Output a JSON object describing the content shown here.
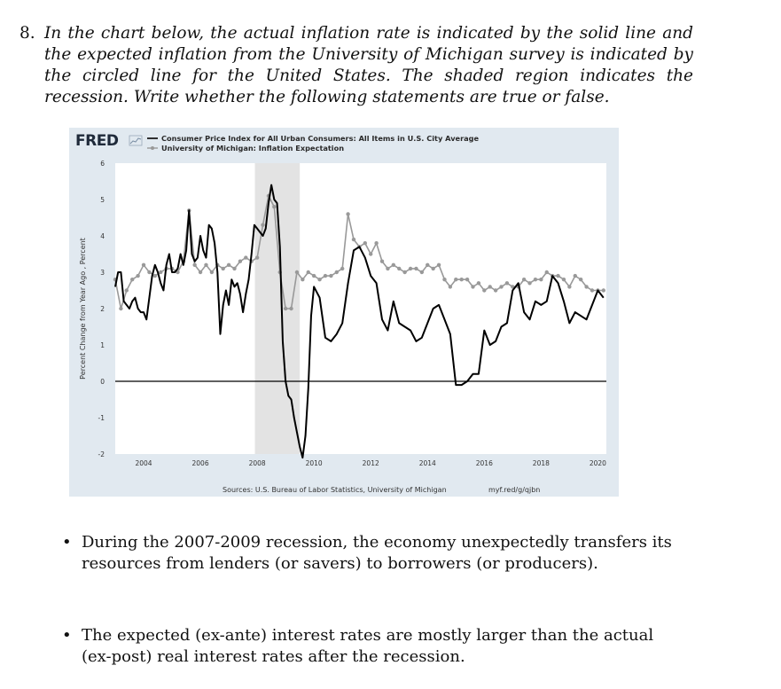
{
  "question": {
    "number": "8.",
    "text": "In the chart below, the actual inflation rate is indicated by the solid line and the expected inflation from the University of Michigan survey is indicated by the circled line for the United States. The shaded region indicates the recession. Write whether the following statements are true or false."
  },
  "chart_data": {
    "type": "line",
    "logo": "FRED",
    "legend": [
      "Consumer Price Index for All Urban Consumers: All Items in U.S. City Average",
      "University of Michigan: Inflation Expectation"
    ],
    "ylabel": "Percent Change from Year Ago , Percent",
    "ylim": [
      -2,
      6
    ],
    "yticks": [
      "6",
      "5",
      "4",
      "3",
      "2",
      "1",
      "0",
      "-1",
      "-2"
    ],
    "xlim": [
      2003.0,
      2020.3
    ],
    "xticks": [
      "2004",
      "2006",
      "2008",
      "2010",
      "2012",
      "2014",
      "2016",
      "2018",
      "2020"
    ],
    "recession": [
      2007.92,
      2009.5
    ],
    "source": "Sources: U.S. Bureau of Labor Statistics, University of Michigan",
    "url": "myf.red/g/qjbn",
    "colors": {
      "actual": "#000000",
      "expected": "#999999",
      "recession": "#e3e3e3"
    },
    "series": [
      {
        "name": "Consumer Price Index for All Urban Consumers: All Items in U.S. City Average",
        "x": [
          2003.0,
          2003.1,
          2003.2,
          2003.3,
          2003.4,
          2003.5,
          2003.6,
          2003.7,
          2003.8,
          2003.9,
          2004.0,
          2004.1,
          2004.2,
          2004.3,
          2004.4,
          2004.5,
          2004.6,
          2004.7,
          2004.8,
          2004.9,
          2005.0,
          2005.1,
          2005.2,
          2005.3,
          2005.4,
          2005.5,
          2005.6,
          2005.7,
          2005.8,
          2005.9,
          2006.0,
          2006.1,
          2006.2,
          2006.3,
          2006.4,
          2006.5,
          2006.6,
          2006.7,
          2006.8,
          2006.9,
          2007.0,
          2007.1,
          2007.2,
          2007.3,
          2007.4,
          2007.5,
          2007.6,
          2007.7,
          2007.8,
          2007.9,
          2008.0,
          2008.1,
          2008.2,
          2008.3,
          2008.4,
          2008.5,
          2008.6,
          2008.7,
          2008.8,
          2008.9,
          2009.0,
          2009.1,
          2009.2,
          2009.3,
          2009.4,
          2009.5,
          2009.6,
          2009.7,
          2009.8,
          2009.9,
          2010.0,
          2010.2,
          2010.4,
          2010.6,
          2010.8,
          2011.0,
          2011.2,
          2011.4,
          2011.6,
          2011.8,
          2012.0,
          2012.2,
          2012.4,
          2012.6,
          2012.8,
          2013.0,
          2013.2,
          2013.4,
          2013.6,
          2013.8,
          2014.0,
          2014.2,
          2014.4,
          2014.6,
          2014.8,
          2015.0,
          2015.2,
          2015.4,
          2015.6,
          2015.8,
          2016.0,
          2016.2,
          2016.4,
          2016.6,
          2016.8,
          2017.0,
          2017.2,
          2017.4,
          2017.6,
          2017.8,
          2018.0,
          2018.2,
          2018.4,
          2018.6,
          2018.8,
          2019.0,
          2019.2,
          2019.4,
          2019.6,
          2019.8,
          2020.0,
          2020.2
        ],
        "values": [
          2.6,
          3.0,
          3.0,
          2.2,
          2.1,
          2.0,
          2.2,
          2.3,
          2.0,
          1.9,
          1.9,
          1.7,
          2.3,
          2.9,
          3.2,
          3.0,
          2.7,
          2.5,
          3.2,
          3.5,
          3.0,
          3.0,
          3.1,
          3.5,
          3.2,
          3.6,
          4.7,
          3.5,
          3.3,
          3.4,
          4.0,
          3.6,
          3.4,
          4.3,
          4.2,
          3.8,
          3.0,
          1.3,
          2.1,
          2.5,
          2.1,
          2.8,
          2.6,
          2.7,
          2.4,
          1.9,
          2.4,
          2.8,
          3.5,
          4.3,
          4.2,
          4.1,
          4.0,
          4.2,
          4.9,
          5.4,
          5.0,
          4.9,
          3.7,
          1.1,
          0.0,
          -0.4,
          -0.5,
          -1.0,
          -1.4,
          -1.8,
          -2.1,
          -1.5,
          -0.2,
          1.8,
          2.6,
          2.3,
          1.2,
          1.1,
          1.3,
          1.6,
          2.7,
          3.6,
          3.7,
          3.4,
          2.9,
          2.7,
          1.7,
          1.4,
          2.2,
          1.6,
          1.5,
          1.4,
          1.1,
          1.2,
          1.6,
          2.0,
          2.1,
          1.7,
          1.3,
          -0.1,
          -0.1,
          0.0,
          0.2,
          0.2,
          1.4,
          1.0,
          1.1,
          1.5,
          1.6,
          2.5,
          2.7,
          1.9,
          1.7,
          2.2,
          2.1,
          2.2,
          2.9,
          2.7,
          2.2,
          1.6,
          1.9,
          1.8,
          1.7,
          2.1,
          2.5,
          2.3
        ]
      },
      {
        "name": "University of Michigan: Inflation Expectation",
        "x": [
          2003.0,
          2003.2,
          2003.4,
          2003.6,
          2003.8,
          2004.0,
          2004.2,
          2004.4,
          2004.6,
          2004.8,
          2005.0,
          2005.2,
          2005.4,
          2005.6,
          2005.8,
          2006.0,
          2006.2,
          2006.4,
          2006.6,
          2006.8,
          2007.0,
          2007.2,
          2007.4,
          2007.6,
          2007.8,
          2008.0,
          2008.2,
          2008.4,
          2008.6,
          2008.8,
          2009.0,
          2009.2,
          2009.4,
          2009.6,
          2009.8,
          2010.0,
          2010.2,
          2010.4,
          2010.6,
          2010.8,
          2011.0,
          2011.2,
          2011.4,
          2011.6,
          2011.8,
          2012.0,
          2012.2,
          2012.4,
          2012.6,
          2012.8,
          2013.0,
          2013.2,
          2013.4,
          2013.6,
          2013.8,
          2014.0,
          2014.2,
          2014.4,
          2014.6,
          2014.8,
          2015.0,
          2015.2,
          2015.4,
          2015.6,
          2015.8,
          2016.0,
          2016.2,
          2016.4,
          2016.6,
          2016.8,
          2017.0,
          2017.2,
          2017.4,
          2017.6,
          2017.8,
          2018.0,
          2018.2,
          2018.4,
          2018.6,
          2018.8,
          2019.0,
          2019.2,
          2019.4,
          2019.6,
          2019.8,
          2020.0,
          2020.2
        ],
        "values": [
          2.8,
          2.0,
          2.5,
          2.8,
          2.9,
          3.2,
          3.0,
          2.9,
          3.0,
          3.1,
          3.1,
          3.0,
          3.3,
          4.7,
          3.2,
          3.0,
          3.2,
          3.0,
          3.2,
          3.1,
          3.2,
          3.1,
          3.3,
          3.4,
          3.3,
          3.4,
          4.3,
          5.1,
          4.8,
          3.0,
          2.0,
          2.0,
          3.0,
          2.8,
          3.0,
          2.9,
          2.8,
          2.9,
          2.9,
          3.0,
          3.1,
          4.6,
          3.9,
          3.7,
          3.8,
          3.5,
          3.8,
          3.3,
          3.1,
          3.2,
          3.1,
          3.0,
          3.1,
          3.1,
          3.0,
          3.2,
          3.1,
          3.2,
          2.8,
          2.6,
          2.8,
          2.8,
          2.8,
          2.6,
          2.7,
          2.5,
          2.6,
          2.5,
          2.6,
          2.7,
          2.6,
          2.6,
          2.8,
          2.7,
          2.8,
          2.8,
          3.0,
          2.9,
          2.9,
          2.8,
          2.6,
          2.9,
          2.8,
          2.6,
          2.5,
          2.5,
          2.5
        ]
      }
    ]
  },
  "bullets": [
    {
      "symbol": "•",
      "text": "During the 2007-2009 recession, the economy unexpectedly transfers its resources from lenders (or savers) to borrowers (or producers)."
    },
    {
      "symbol": "•",
      "text": "The expected (ex-ante) interest rates are mostly larger than the actual (ex-post) real interest rates after the recession."
    }
  ]
}
